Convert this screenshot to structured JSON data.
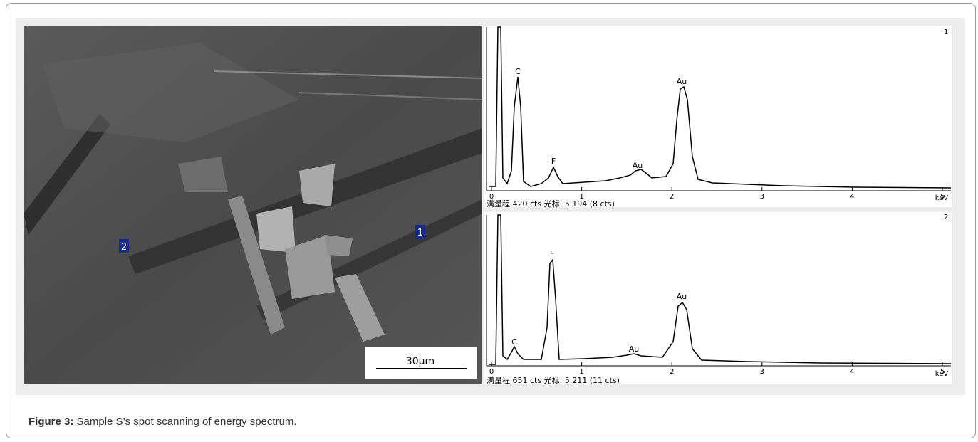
{
  "figure": {
    "label": "Figure 3:",
    "caption": "Sample S’s spot scanning of energy spectrum."
  },
  "sem_image": {
    "scale_bar": "30μm",
    "points": [
      "1",
      "2"
    ]
  },
  "spectra": [
    {
      "panel": "1",
      "peaks": [
        "C",
        "F",
        "Au",
        "Au"
      ],
      "x_ticks": [
        "0",
        "1",
        "2",
        "3",
        "4",
        "5"
      ],
      "unit": "keV",
      "status": "满量程 420 cts 光标: 5.194 (8 cts)"
    },
    {
      "panel": "2",
      "peaks": [
        "C",
        "F",
        "Au",
        "Au"
      ],
      "x_ticks": [
        "0",
        "1",
        "2",
        "3",
        "4",
        "5"
      ],
      "unit": "keV",
      "status": "满量程 651 cts 光标: 5.211 (11 cts)"
    }
  ]
}
